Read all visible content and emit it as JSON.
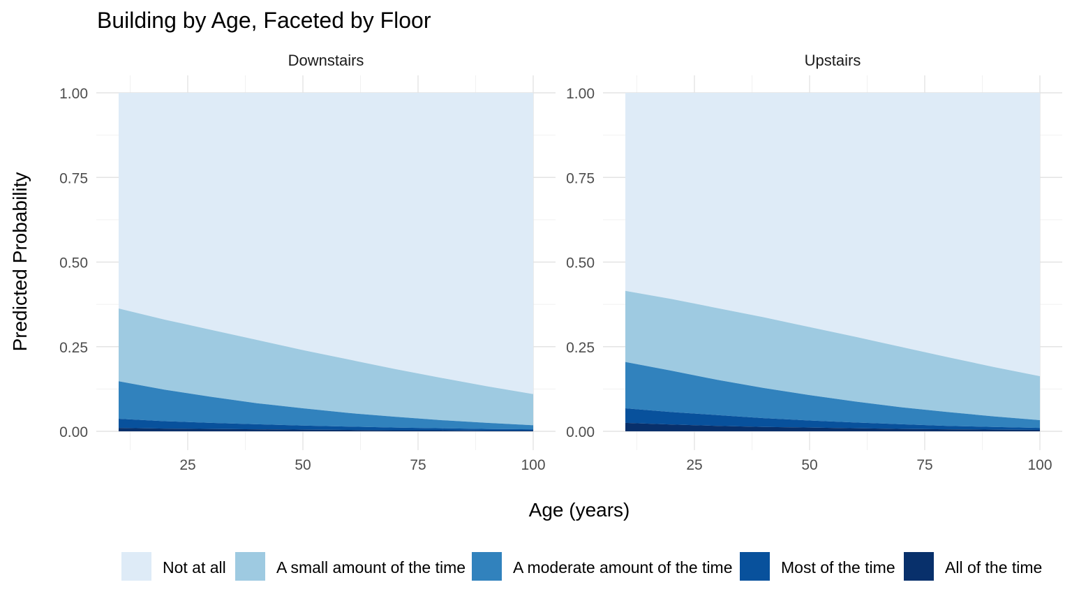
{
  "chart_data": {
    "type": "area",
    "title": "Building by Age, Faceted by Floor",
    "xlabel": "Age (years)",
    "ylabel": "Predicted Probability",
    "xlim": [
      10,
      100
    ],
    "ylim": [
      0,
      1
    ],
    "x_ticks": [
      25,
      50,
      75,
      100
    ],
    "y_ticks": [
      0,
      0.25,
      0.5,
      0.75,
      1
    ],
    "y_tick_labels": [
      "0.00",
      "0.25",
      "0.50",
      "0.75",
      "1.00"
    ],
    "x_tick_labels": [
      "25",
      "50",
      "75",
      "100"
    ],
    "stacked": true,
    "grid": true,
    "legend_position": "bottom",
    "x": [
      10,
      20,
      30,
      40,
      50,
      60,
      70,
      80,
      90,
      100
    ],
    "categories_legend": [
      "Not at all",
      "A small amount of the time",
      "A moderate amount of the time",
      "Most of the time",
      "All of the time"
    ],
    "colors": {
      "Not at all": "#deebf7",
      "A small amount of the time": "#9ecae1",
      "A moderate amount of the time": "#3182bd",
      "Most of the time": "#08519c",
      "All of the time": "#08306b"
    },
    "facets": [
      {
        "name": "Downstairs",
        "cumulative_upper": {
          "All of the time": [
            0.01,
            0.008,
            0.007,
            0.006,
            0.005,
            0.004,
            0.003,
            0.003,
            0.002,
            0.002
          ],
          "Most of the time": [
            0.037,
            0.03,
            0.025,
            0.021,
            0.017,
            0.014,
            0.011,
            0.009,
            0.007,
            0.006
          ],
          "A moderate amount of the time": [
            0.148,
            0.123,
            0.102,
            0.083,
            0.068,
            0.054,
            0.043,
            0.033,
            0.025,
            0.018
          ],
          "A small amount of the time": [
            0.363,
            0.33,
            0.3,
            0.27,
            0.24,
            0.212,
            0.184,
            0.158,
            0.133,
            0.11
          ],
          "Not at all": [
            1,
            1,
            1,
            1,
            1,
            1,
            1,
            1,
            1,
            1
          ]
        }
      },
      {
        "name": "Upstairs",
        "cumulative_upper": {
          "All of the time": [
            0.025,
            0.02,
            0.016,
            0.013,
            0.011,
            0.009,
            0.007,
            0.006,
            0.005,
            0.004
          ],
          "Most of the time": [
            0.068,
            0.057,
            0.048,
            0.039,
            0.032,
            0.026,
            0.021,
            0.016,
            0.013,
            0.01
          ],
          "A moderate amount of the time": [
            0.205,
            0.179,
            0.152,
            0.128,
            0.107,
            0.088,
            0.071,
            0.057,
            0.044,
            0.033
          ],
          "A small amount of the time": [
            0.415,
            0.391,
            0.364,
            0.337,
            0.308,
            0.279,
            0.249,
            0.219,
            0.19,
            0.163
          ],
          "Not at all": [
            1,
            1,
            1,
            1,
            1,
            1,
            1,
            1,
            1,
            1
          ]
        }
      }
    ]
  }
}
